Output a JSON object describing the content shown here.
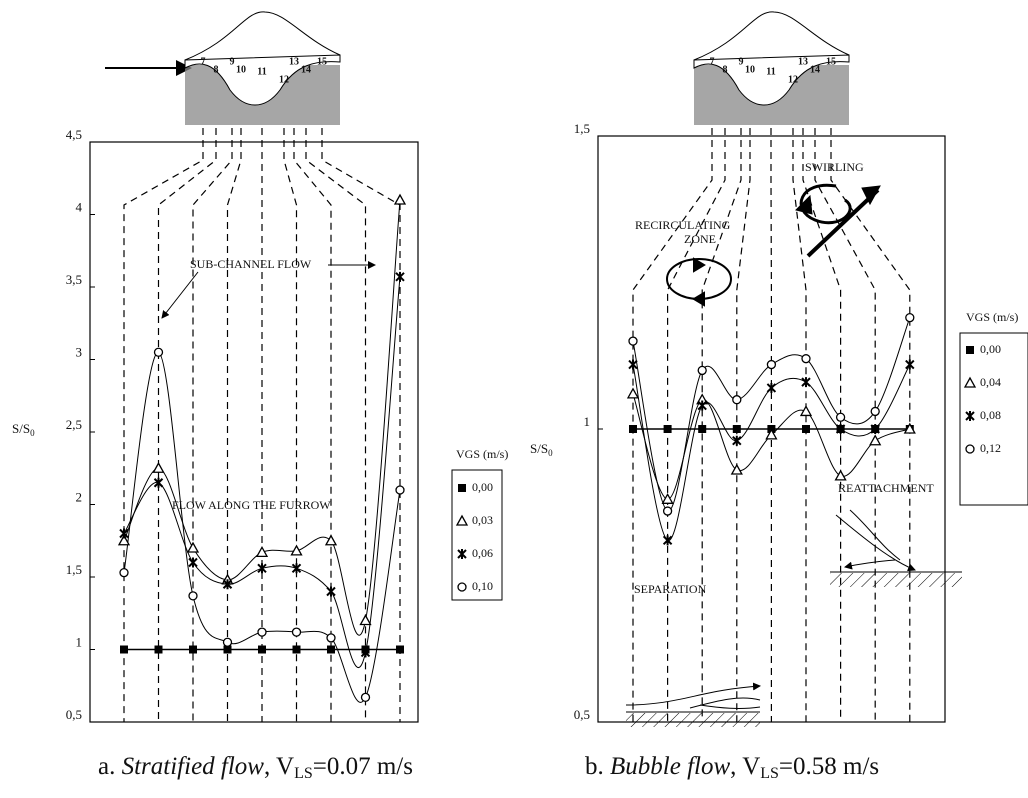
{
  "chart_data": [
    {
      "type": "line",
      "y_label": "S/S",
      "y_label_sub": "0",
      "caption": {
        "prefix": "a. ",
        "italic": "Stratified flow",
        "mid": ", V",
        "sub": "LS",
        "tail": "=0.07 m/s"
      },
      "categories": [
        "7",
        "8",
        "9",
        "10",
        "11",
        "12",
        "13",
        "14",
        "15"
      ],
      "ylim": [
        0.5,
        4.5
      ],
      "yticks": [
        {
          "value": 0.5,
          "label": "0,5"
        },
        1,
        {
          "value": 1.5,
          "label": "1,5"
        },
        2,
        {
          "value": 2.5,
          "label": "2,5"
        },
        3,
        {
          "value": 3.5,
          "label": "3,5"
        },
        4,
        {
          "value": 4.5,
          "label": "4,5"
        }
      ],
      "legend_title": "VGS (m/s)",
      "legend": "right",
      "series": [
        {
          "name": "0,00",
          "marker": "square",
          "color": "#000000",
          "values": [
            1,
            1,
            1,
            1,
            1,
            1,
            1,
            1,
            1
          ]
        },
        {
          "name": "0,03",
          "marker": "triangle",
          "color": "#000000",
          "values": [
            1.75,
            2.25,
            1.7,
            1.48,
            1.67,
            1.68,
            1.75,
            1.2,
            4.1
          ]
        },
        {
          "name": "0,06",
          "marker": "cross",
          "color": "#000000",
          "values": [
            1.8,
            2.15,
            1.6,
            1.45,
            1.56,
            1.56,
            1.4,
            0.98,
            3.57
          ]
        },
        {
          "name": "0,10",
          "marker": "circle",
          "color": "#000000",
          "values": [
            1.53,
            3.05,
            1.37,
            1.05,
            1.12,
            1.12,
            1.08,
            0.67,
            2.1
          ]
        }
      ],
      "annotations": [
        "SUB-CHANNEL FLOW",
        "FLOW ALONG THE FURROW"
      ]
    },
    {
      "type": "line",
      "y_label": "S/S",
      "y_label_sub": "0",
      "caption": {
        "prefix": "b. ",
        "italic": "Bubble flow",
        "mid": ", V",
        "sub": "LS",
        "tail": "=0.58 m/s"
      },
      "categories": [
        "7",
        "8",
        "9",
        "10",
        "11",
        "12",
        "13",
        "14",
        "15"
      ],
      "ylim": [
        0.5,
        1.5
      ],
      "yticks": [
        {
          "value": 0.5,
          "label": "0,5"
        },
        1,
        {
          "value": 1.5,
          "label": "1,5"
        }
      ],
      "legend_title": "VGS (m/s)",
      "legend": "right",
      "series": [
        {
          "name": "0,00",
          "marker": "square",
          "color": "#000000",
          "values": [
            1,
            1,
            1,
            1,
            1,
            1,
            1,
            1,
            1
          ]
        },
        {
          "name": "0,04",
          "marker": "triangle",
          "color": "#000000",
          "values": [
            1.06,
            0.88,
            1.05,
            0.93,
            0.99,
            1.03,
            0.92,
            0.98,
            1.0
          ]
        },
        {
          "name": "0,08",
          "marker": "cross",
          "color": "#000000",
          "values": [
            1.11,
            0.81,
            1.04,
            0.98,
            1.07,
            1.08,
            1.0,
            1.0,
            1.11
          ]
        },
        {
          "name": "0,12",
          "marker": "circle",
          "color": "#000000",
          "values": [
            1.15,
            0.86,
            1.1,
            1.05,
            1.11,
            1.12,
            1.02,
            1.03,
            1.19
          ]
        }
      ],
      "annotations": [
        "RECIRCULATING",
        "ZONE",
        "SWIRLING",
        "REATTACHMENT",
        "SEPARATION"
      ]
    }
  ]
}
